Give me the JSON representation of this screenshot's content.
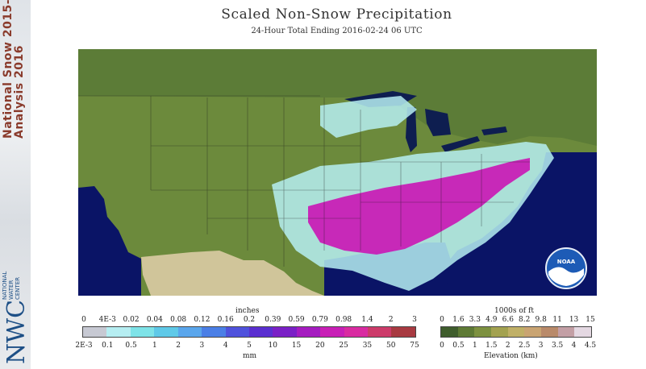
{
  "title": "Scaled Non-Snow Precipitation",
  "subtitle": "24-Hour Total Ending 2016-02-24 06 UTC",
  "branding": {
    "side_line1": "National Snow 2015-",
    "side_line2": "Analysis 2016",
    "nwc": "NWC",
    "nwc_full": [
      "NATIONAL",
      "WATER",
      "CENTER"
    ],
    "noaa": "NOAA"
  },
  "precip_legend": {
    "top_title": "inches",
    "bottom_title": "mm",
    "top_ticks": [
      "0",
      "4E-3",
      "0.02",
      "0.04",
      "0.08",
      "0.12",
      "0.16",
      "0.2",
      "0.39",
      "0.59",
      "0.79",
      "0.98",
      "1.4",
      "2",
      "3"
    ],
    "bottom_ticks": [
      "2E-3",
      "0.1",
      "0.5",
      "1",
      "2",
      "3",
      "4",
      "5",
      "10",
      "15",
      "20",
      "25",
      "35",
      "50",
      "75"
    ],
    "colors": [
      "#c7c9d3",
      "#b6eef2",
      "#7ee3e8",
      "#5fc9e8",
      "#5aa6ec",
      "#4b7fe6",
      "#4f52dc",
      "#5a2fd0",
      "#7a20c6",
      "#a51cc0",
      "#c81fb6",
      "#d92ba1",
      "#cc3b6a",
      "#a83a41"
    ]
  },
  "elevation_legend": {
    "top_title": "1000s of ft",
    "bottom_title": "Elevation (km)",
    "top_ticks": [
      "0",
      "1.6",
      "3.3",
      "4.9",
      "6.6",
      "8.2",
      "9.8",
      "11",
      "13",
      "15"
    ],
    "bottom_ticks": [
      "0",
      "0.5",
      "1",
      "1.5",
      "2",
      "2.5",
      "3",
      "3.5",
      "4",
      "4.5"
    ],
    "colors": [
      "#3f5d2d",
      "#5e7a35",
      "#7d9140",
      "#a3a250",
      "#c0b067",
      "#c9a472",
      "#b98a6a",
      "#c39fa5",
      "#e4d8e2"
    ]
  },
  "map_colors": {
    "ocean": "#0a1466",
    "land": "#6c8a3c",
    "canada": "#5c7c37",
    "lake": "#0e1e50",
    "mexico": "#d0c59a"
  }
}
